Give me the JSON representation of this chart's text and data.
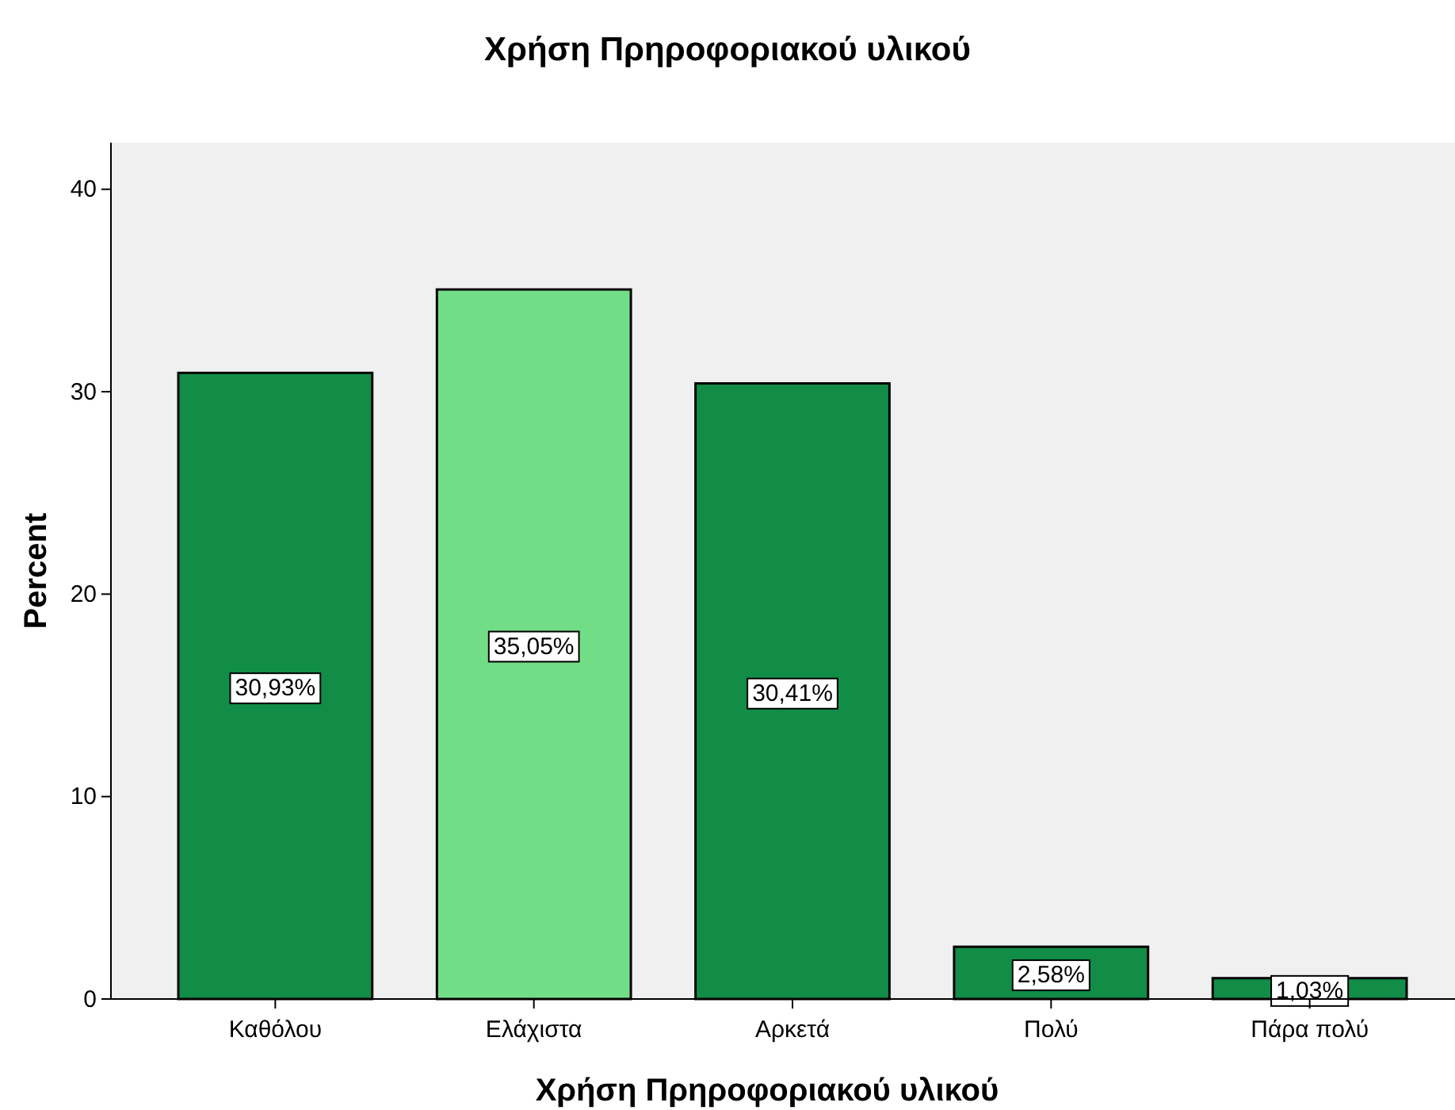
{
  "chart_data": {
    "type": "bar",
    "title": "Χρήση Πρηροφοριακού υλικού",
    "xlabel": "Χρήση Πρηροφοριακού υλικού",
    "ylabel": "Percent",
    "categories": [
      "Καθόλου",
      "Ελάχιστα",
      "Αρκετά",
      "Πολύ",
      "Πάρα πολύ"
    ],
    "values": [
      30.93,
      35.05,
      30.41,
      2.58,
      1.03
    ],
    "colors": [
      "#118d48",
      "#72dd87",
      "#118d48",
      "#118d48",
      "#118d48"
    ],
    "value_labels": [
      "30,93%",
      "35,05%",
      "30,41%",
      "2,58%",
      "1,03%"
    ],
    "ylim": [
      0,
      42.3
    ],
    "yticks": [
      0,
      10,
      20,
      30,
      40
    ],
    "grid": false
  }
}
